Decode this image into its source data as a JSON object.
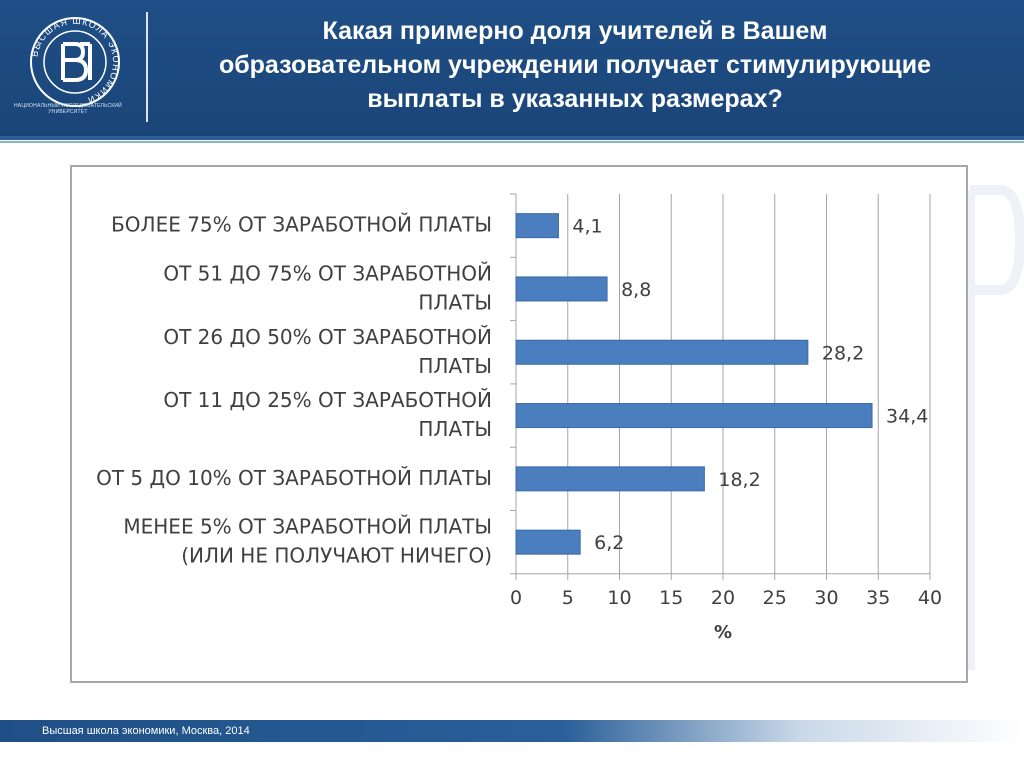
{
  "header": {
    "title_lines": [
      "Какая примерно доля учителей в Вашем",
      "образовательном учреждении получает стимулирующие",
      "выплаты в указанных размерах?"
    ],
    "logo_ring_text": "ВЫСШАЯ ШКОЛА ЭКОНОМИКИ",
    "logo_caption": "НАЦИОНАЛЬНЫЙ ИССЛЕДОВАТЕЛЬСКИЙ УНИВЕРСИТЕТ"
  },
  "colors": {
    "header_bg": "#1f4f86",
    "bar": "#4a7ebf",
    "bar_edge": "#3a6aa6",
    "grid": "#a6a6a6",
    "text": "#404040"
  },
  "chart_data": {
    "type": "bar",
    "orientation": "horizontal",
    "categories": [
      [
        "БОЛЕЕ 75% ОТ ЗАРАБОТНОЙ ПЛАТЫ"
      ],
      [
        "ОТ 51 ДО 75% ОТ ЗАРАБОТНОЙ",
        "ПЛАТЫ"
      ],
      [
        "ОТ 26 ДО 50% ОТ ЗАРАБОТНОЙ",
        "ПЛАТЫ"
      ],
      [
        "ОТ 11 ДО 25% ОТ ЗАРАБОТНОЙ",
        "ПЛАТЫ"
      ],
      [
        "ОТ 5 ДО 10% ОТ ЗАРАБОТНОЙ ПЛАТЫ"
      ],
      [
        "МЕНЕЕ 5% ОТ ЗАРАБОТНОЙ ПЛАТЫ",
        "(ИЛИ НЕ ПОЛУЧАЮТ НИЧЕГО)"
      ]
    ],
    "values": [
      4.1,
      8.8,
      28.2,
      34.4,
      18.2,
      6.2
    ],
    "value_labels": [
      "4,1",
      "8,8",
      "28,2",
      "34,4",
      "18,2",
      "6,2"
    ],
    "xlim": [
      0,
      40
    ],
    "xticks": [
      0,
      5,
      10,
      15,
      20,
      25,
      30,
      35,
      40
    ],
    "xlabel": "%",
    "grid": true
  },
  "footer": {
    "text": "Высшая школа экономики, Москва, 2014"
  }
}
